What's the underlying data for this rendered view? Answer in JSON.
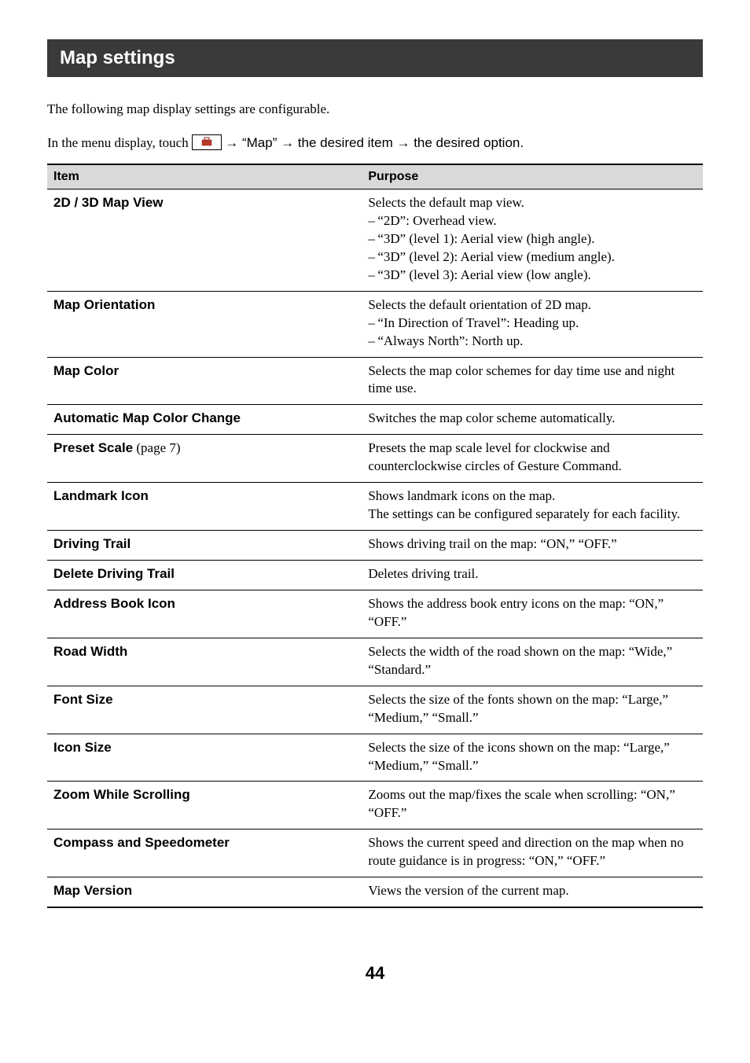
{
  "title": "Map settings",
  "intro_line1": "The following map display settings are configurable.",
  "intro_line2_prefix": "In the menu display, touch ",
  "intro_line2_mid1": " → “Map” → the desired item → the desired option.",
  "table": {
    "header_item": "Item",
    "header_purpose": "Purpose",
    "rows": [
      {
        "item": "2D / 3D Map View",
        "suffix": "",
        "purpose_lead": "Selects the default map view.",
        "bullets": [
          "“2D”: Overhead view.",
          "“3D” (level 1): Aerial view (high angle).",
          "“3D” (level 2): Aerial view (medium angle).",
          "“3D” (level 3): Aerial view (low angle)."
        ]
      },
      {
        "item": "Map Orientation",
        "suffix": "",
        "purpose_lead": "Selects the default orientation of 2D map.",
        "bullets": [
          "“In Direction of Travel”: Heading up.",
          "“Always North”: North up."
        ]
      },
      {
        "item": "Map Color",
        "suffix": "",
        "purpose_lead": "Selects the map color schemes for day time use and night time use.",
        "bullets": []
      },
      {
        "item": "Automatic Map Color Change",
        "suffix": "",
        "purpose_lead": "Switches the map color scheme automatically.",
        "bullets": []
      },
      {
        "item": "Preset Scale",
        "suffix": " (page 7)",
        "purpose_lead": "Presets the map scale level for clockwise and counterclockwise circles of Gesture Command.",
        "bullets": []
      },
      {
        "item": "Landmark Icon",
        "suffix": "",
        "purpose_lead": "Shows landmark icons on the map.\nThe settings can be configured separately for each facility.",
        "bullets": []
      },
      {
        "item": "Driving Trail",
        "suffix": "",
        "purpose_lead": "Shows driving trail on the map: “ON,” “OFF.”",
        "bullets": []
      },
      {
        "item": "Delete Driving Trail",
        "suffix": "",
        "purpose_lead": "Deletes driving trail.",
        "bullets": []
      },
      {
        "item": "Address Book Icon",
        "suffix": "",
        "purpose_lead": "Shows the address book entry icons on the map: “ON,” “OFF.”",
        "bullets": []
      },
      {
        "item": "Road Width",
        "suffix": "",
        "purpose_lead": "Selects the width of the road shown on the map: “Wide,” “Standard.”",
        "bullets": []
      },
      {
        "item": "Font Size",
        "suffix": "",
        "purpose_lead": "Selects the size of the fonts shown on the map: “Large,” “Medium,” “Small.”",
        "bullets": []
      },
      {
        "item": "Icon Size",
        "suffix": "",
        "purpose_lead": "Selects the size of the icons shown on the map: “Large,” “Medium,” “Small.”",
        "bullets": []
      },
      {
        "item": "Zoom While Scrolling",
        "suffix": "",
        "purpose_lead": "Zooms out the map/fixes the scale when scrolling: “ON,” “OFF.”",
        "bullets": []
      },
      {
        "item": "Compass and Speedometer",
        "suffix": "",
        "purpose_lead": "Shows the current speed and direction on the map when no route guidance is in progress: “ON,” “OFF.”",
        "bullets": []
      },
      {
        "item": "Map Version",
        "suffix": "",
        "purpose_lead": "Views the version of the current map.",
        "bullets": []
      }
    ]
  },
  "page_number": "44"
}
